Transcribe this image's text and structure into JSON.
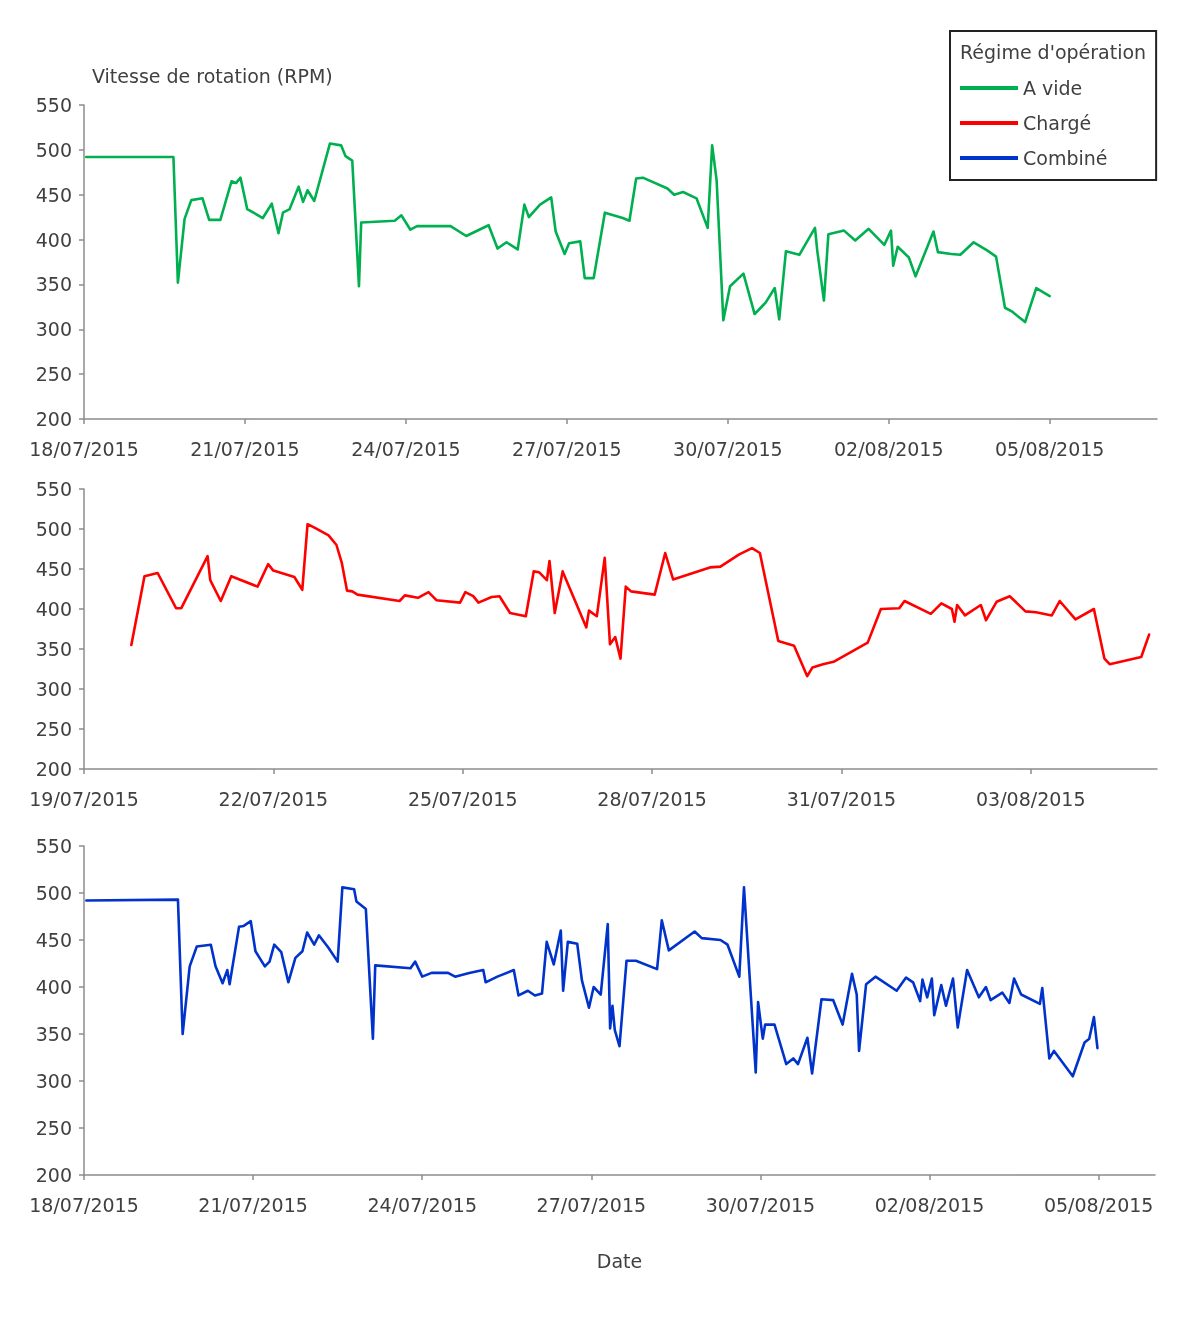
{
  "chart_data": [
    {
      "type": "line",
      "ylabel": "Vitesse de rotation (RPM)",
      "legend": "top right",
      "legend_title": "Régime d'opération",
      "xlim": [
        "2015-07-18",
        "2015-08-07"
      ],
      "xticks": [
        {
          "value": "2015-07-18",
          "label": "18/07/2015"
        },
        {
          "value": "2015-07-21",
          "label": "21/07/2015"
        },
        {
          "value": "2015-07-24",
          "label": "24/07/2015"
        },
        {
          "value": "2015-07-27",
          "label": "27/07/2015"
        },
        {
          "value": "2015-07-30",
          "label": "30/07/2015"
        },
        {
          "value": "2015-08-02",
          "label": "02/08/2015"
        },
        {
          "value": "2015-08-05",
          "label": "05/08/2015"
        }
      ],
      "ylim": [
        200,
        550
      ],
      "yticks": [
        200,
        250,
        300,
        350,
        400,
        450,
        500,
        550
      ],
      "series": [
        {
          "name": "A vide",
          "color": "#00b050",
          "x": [
            "2015-07-18T01:00",
            "2015-07-19T16:00",
            "2015-07-19T18:00",
            "2015-07-19T21:00",
            "2015-07-20T00:00",
            "2015-07-20T05:00",
            "2015-07-20T08:00",
            "2015-07-20T13:00",
            "2015-07-20T18:00",
            "2015-07-20T20:00",
            "2015-07-20T22:00",
            "2015-07-21T01:00",
            "2015-07-21T08:00",
            "2015-07-21T12:00",
            "2015-07-21T15:00",
            "2015-07-21T17:00",
            "2015-07-21T20:00",
            "2015-07-22T00:00",
            "2015-07-22T02:00",
            "2015-07-22T04:00",
            "2015-07-22T07:00",
            "2015-07-22T14:00",
            "2015-07-22T19:00",
            "2015-07-22T21:00",
            "2015-07-23T00:00",
            "2015-07-23T03:00",
            "2015-07-23T04:00",
            "2015-07-23T19:00",
            "2015-07-23T22:00",
            "2015-07-24T02:00",
            "2015-07-24T05:00",
            "2015-07-24T20:00",
            "2015-07-25T03:00",
            "2015-07-25T13:00",
            "2015-07-25T17:00",
            "2015-07-25T21:00",
            "2015-07-26T02:00",
            "2015-07-26T05:00",
            "2015-07-26T07:00",
            "2015-07-26T12:00",
            "2015-07-26T17:00",
            "2015-07-26T19:00",
            "2015-07-26T23:00",
            "2015-07-27T01:00",
            "2015-07-27T06:00",
            "2015-07-27T08:00",
            "2015-07-27T12:00",
            "2015-07-27T17:00",
            "2015-07-28T01:00",
            "2015-07-28T04:00",
            "2015-07-28T07:00",
            "2015-07-28T10:00",
            "2015-07-28T21:00",
            "2015-07-29T00:00",
            "2015-07-29T04:00",
            "2015-07-29T10:00",
            "2015-07-29T15:00",
            "2015-07-29T17:00",
            "2015-07-29T19:00",
            "2015-07-29T22:00",
            "2015-07-30T01:00",
            "2015-07-30T07:00",
            "2015-07-30T12:00",
            "2015-07-30T17:00",
            "2015-07-30T21:00",
            "2015-07-30T23:00",
            "2015-07-31T02:00",
            "2015-07-31T08:00",
            "2015-07-31T15:00",
            "2015-07-31T16:00",
            "2015-07-31T19:00",
            "2015-07-31T21:00",
            "2015-08-01T04:00",
            "2015-08-01T09:00",
            "2015-08-01T15:00",
            "2015-08-01T22:00",
            "2015-08-02T01:00",
            "2015-08-02T02:00",
            "2015-08-02T04:00",
            "2015-08-02T09:00",
            "2015-08-02T12:00",
            "2015-08-02T20:00",
            "2015-08-02T22:00",
            "2015-08-03T04:00",
            "2015-08-03T08:00",
            "2015-08-03T14:00",
            "2015-08-03T20:00",
            "2015-08-04T00:00",
            "2015-08-04T04:00",
            "2015-08-04T07:00",
            "2015-08-04T13:00",
            "2015-08-04T18:00",
            "2015-08-05T00:00"
          ],
          "values": [
            492,
            492,
            352,
            423,
            444,
            446,
            422,
            422,
            465,
            463,
            469,
            434,
            424,
            440,
            407,
            430,
            434,
            459,
            442,
            455,
            443,
            507,
            505,
            493,
            488,
            348,
            419,
            421,
            427,
            411,
            415,
            415,
            404,
            416,
            390,
            397,
            389,
            439,
            425,
            439,
            447,
            409,
            384,
            396,
            398,
            357,
            357,
            430,
            424,
            421,
            468,
            469,
            457,
            450,
            453,
            446,
            413,
            505,
            466,
            310,
            348,
            362,
            317,
            330,
            346,
            311,
            387,
            383,
            413,
            388,
            332,
            406,
            410,
            399,
            412,
            394,
            410,
            371,
            392,
            380,
            359,
            409,
            386,
            384,
            383,
            397,
            388,
            381,
            324,
            320,
            308,
            346,
            337
          ]
        }
      ]
    },
    {
      "type": "line",
      "xlim": [
        "2015-07-19",
        "2015-08-05"
      ],
      "xticks": [
        {
          "value": "2015-07-19",
          "label": "19/07/2015"
        },
        {
          "value": "2015-07-22",
          "label": "22/07/2015"
        },
        {
          "value": "2015-07-25",
          "label": "25/07/2015"
        },
        {
          "value": "2015-07-28",
          "label": "28/07/2015"
        },
        {
          "value": "2015-07-31",
          "label": "31/07/2015"
        },
        {
          "value": "2015-08-03",
          "label": "03/08/2015"
        }
      ],
      "ylim": [
        200,
        550
      ],
      "yticks": [
        200,
        250,
        300,
        350,
        400,
        450,
        500,
        550
      ],
      "series": [
        {
          "name": "Chargé",
          "color": "#ff0000",
          "x": [
            "2015-07-19T18:00",
            "2015-07-19T23:00",
            "2015-07-20T04:00",
            "2015-07-20T11:00",
            "2015-07-20T13:00",
            "2015-07-20T23:00",
            "2015-07-21T00:00",
            "2015-07-21T04:00",
            "2015-07-21T08:00",
            "2015-07-21T18:00",
            "2015-07-21T22:00",
            "2015-07-22T00:00",
            "2015-07-22T08:00",
            "2015-07-22T11:00",
            "2015-07-22T13:00",
            "2015-07-22T16:00",
            "2015-07-22T21:00",
            "2015-07-23T00:00",
            "2015-07-23T02:00",
            "2015-07-23T04:00",
            "2015-07-23T06:00",
            "2015-07-23T08:00",
            "2015-07-24T00:00",
            "2015-07-24T02:00",
            "2015-07-24T07:00",
            "2015-07-24T11:00",
            "2015-07-24T14:00",
            "2015-07-24T23:00",
            "2015-07-25T01:00",
            "2015-07-25T04:00",
            "2015-07-25T06:00",
            "2015-07-25T11:00",
            "2015-07-25T14:00",
            "2015-07-25T18:00",
            "2015-07-26T00:00",
            "2015-07-26T03:00",
            "2015-07-26T05:00",
            "2015-07-26T08:00",
            "2015-07-26T09:00",
            "2015-07-26T11:00",
            "2015-07-26T14:00",
            "2015-07-26T23:00",
            "2015-07-27T00:00",
            "2015-07-27T03:00",
            "2015-07-27T06:00",
            "2015-07-27T08:00",
            "2015-07-27T10:00",
            "2015-07-27T12:00",
            "2015-07-27T14:00",
            "2015-07-27T16:00",
            "2015-07-28T01:00",
            "2015-07-28T05:00",
            "2015-07-28T08:00",
            "2015-07-28T22:00",
            "2015-07-29T02:00",
            "2015-07-29T09:00",
            "2015-07-29T14:00",
            "2015-07-29T17:00",
            "2015-07-30T00:00",
            "2015-07-30T06:00",
            "2015-07-30T11:00",
            "2015-07-30T13:00",
            "2015-07-30T17:00",
            "2015-07-30T21:00",
            "2015-07-31T10:00",
            "2015-07-31T15:00",
            "2015-07-31T22:00",
            "2015-08-01T00:00",
            "2015-08-01T10:00",
            "2015-08-01T14:00",
            "2015-08-01T18:00",
            "2015-08-01T19:00",
            "2015-08-01T20:00",
            "2015-08-01T23:00",
            "2015-08-02T05:00",
            "2015-08-02T07:00",
            "2015-08-02T11:00",
            "2015-08-02T16:00",
            "2015-08-02T22:00",
            "2015-08-03T02:00",
            "2015-08-03T08:00",
            "2015-08-03T11:00",
            "2015-08-03T17:00",
            "2015-08-04T00:00",
            "2015-08-04T04:00",
            "2015-08-04T06:00",
            "2015-08-04T18:00",
            "2015-08-04T21:00"
          ],
          "values": [
            355,
            441,
            445,
            401,
            401,
            466,
            436,
            410,
            441,
            428,
            456,
            448,
            440,
            424,
            506,
            501,
            492,
            480,
            458,
            423,
            422,
            418,
            410,
            417,
            414,
            421,
            411,
            408,
            421,
            416,
            408,
            415,
            416,
            395,
            391,
            447,
            446,
            436,
            460,
            395,
            447,
            377,
            398,
            391,
            464,
            356,
            365,
            338,
            428,
            422,
            418,
            470,
            437,
            452,
            453,
            468,
            476,
            470,
            360,
            354,
            316,
            327,
            331,
            334,
            358,
            400,
            401,
            410,
            394,
            407,
            400,
            384,
            405,
            392,
            405,
            386,
            409,
            416,
            397,
            396,
            392,
            410,
            387,
            400,
            338,
            331,
            340,
            368
          ]
        }
      ]
    },
    {
      "type": "line",
      "xlabel": "Date",
      "xlim": [
        "2015-07-18",
        "2015-08-06"
      ],
      "xticks": [
        {
          "value": "2015-07-18",
          "label": "18/07/2015"
        },
        {
          "value": "2015-07-21",
          "label": "21/07/2015"
        },
        {
          "value": "2015-07-24",
          "label": "24/07/2015"
        },
        {
          "value": "2015-07-27",
          "label": "27/07/2015"
        },
        {
          "value": "2015-07-30",
          "label": "30/07/2015"
        },
        {
          "value": "2015-08-02",
          "label": "02/08/2015"
        },
        {
          "value": "2015-08-05",
          "label": "05/08/2015"
        }
      ],
      "ylim": [
        200,
        550
      ],
      "yticks": [
        200,
        250,
        300,
        350,
        400,
        450,
        500,
        550
      ],
      "series": [
        {
          "name": "Combiné",
          "color": "#0033cc",
          "x": [
            "2015-07-18T01:00",
            "2015-07-19T16:00",
            "2015-07-19T18:00",
            "2015-07-19T21:00",
            "2015-07-20T00:00",
            "2015-07-20T06:00",
            "2015-07-20T08:00",
            "2015-07-20T11:00",
            "2015-07-20T13:00",
            "2015-07-20T14:00",
            "2015-07-20T18:00",
            "2015-07-20T20:00",
            "2015-07-20T23:00",
            "2015-07-21T01:00",
            "2015-07-21T05:00",
            "2015-07-21T07:00",
            "2015-07-21T09:00",
            "2015-07-21T12:00",
            "2015-07-21T15:00",
            "2015-07-21T18:00",
            "2015-07-21T21:00",
            "2015-07-21T23:00",
            "2015-07-22T02:00",
            "2015-07-22T04:00",
            "2015-07-22T08:00",
            "2015-07-22T12:00",
            "2015-07-22T14:00",
            "2015-07-22T19:00",
            "2015-07-22T20:00",
            "2015-07-23T00:00",
            "2015-07-23T03:00",
            "2015-07-23T04:00",
            "2015-07-23T19:00",
            "2015-07-23T21:00",
            "2015-07-24T00:00",
            "2015-07-24T04:00",
            "2015-07-24T11:00",
            "2015-07-24T14:00",
            "2015-07-24T20:00",
            "2015-07-25T02:00",
            "2015-07-25T03:00",
            "2015-07-25T08:00",
            "2015-07-25T15:00",
            "2015-07-25T17:00",
            "2015-07-25T21:00",
            "2015-07-26T00:00",
            "2015-07-26T03:00",
            "2015-07-26T05:00",
            "2015-07-26T08:00",
            "2015-07-26T11:00",
            "2015-07-26T12:00",
            "2015-07-26T14:00",
            "2015-07-26T18:00",
            "2015-07-26T20:00",
            "2015-07-26T23:00",
            "2015-07-27T01:00",
            "2015-07-27T04:00",
            "2015-07-27T07:00",
            "2015-07-27T08:00",
            "2015-07-27T09:00",
            "2015-07-27T10:00",
            "2015-07-27T12:00",
            "2015-07-27T15:00",
            "2015-07-27T19:00",
            "2015-07-28T04:00",
            "2015-07-28T06:00",
            "2015-07-28T09:00",
            "2015-07-28T20:00",
            "2015-07-28T23:00",
            "2015-07-29T07:00",
            "2015-07-29T10:00",
            "2015-07-29T15:00",
            "2015-07-29T17:00",
            "2015-07-29T22:00",
            "2015-07-29T23:00",
            "2015-07-30T01:00",
            "2015-07-30T02:00",
            "2015-07-30T06:00",
            "2015-07-30T11:00",
            "2015-07-30T14:00",
            "2015-07-30T16:00",
            "2015-07-30T20:00",
            "2015-07-30T22:00",
            "2015-07-31T02:00",
            "2015-07-31T07:00",
            "2015-07-31T11:00",
            "2015-07-31T15:00",
            "2015-07-31T17:00",
            "2015-07-31T18:00",
            "2015-07-31T21:00",
            "2015-08-01T01:00",
            "2015-08-01T10:00",
            "2015-08-01T14:00",
            "2015-08-01T17:00",
            "2015-08-01T20:00",
            "2015-08-01T21:00",
            "2015-08-01T23:00",
            "2015-08-02T01:00",
            "2015-08-02T02:00",
            "2015-08-02T05:00",
            "2015-08-02T07:00",
            "2015-08-02T10:00",
            "2015-08-02T12:00",
            "2015-08-02T16:00",
            "2015-08-02T21:00",
            "2015-08-03T00:00",
            "2015-08-03T02:00",
            "2015-08-03T07:00",
            "2015-08-03T10:00",
            "2015-08-03T12:00",
            "2015-08-03T15:00",
            "2015-08-03T23:00",
            "2015-08-04T00:00",
            "2015-08-04T03:00",
            "2015-08-04T05:00",
            "2015-08-04T13:00",
            "2015-08-04T18:00",
            "2015-08-04T20:00",
            "2015-08-04T22:00",
            "2015-08-04T23:30"
          ],
          "values": [
            492,
            493,
            350,
            422,
            443,
            445,
            422,
            404,
            418,
            403,
            464,
            465,
            470,
            438,
            422,
            427,
            445,
            437,
            405,
            431,
            438,
            458,
            445,
            455,
            442,
            427,
            506,
            504,
            491,
            483,
            345,
            423,
            420,
            427,
            411,
            415,
            415,
            411,
            415,
            418,
            405,
            411,
            418,
            391,
            396,
            391,
            393,
            448,
            424,
            460,
            396,
            448,
            446,
            407,
            378,
            400,
            392,
            467,
            356,
            380,
            354,
            337,
            428,
            428,
            419,
            471,
            439,
            459,
            452,
            450,
            445,
            411,
            506,
            309,
            384,
            345,
            360,
            360,
            318,
            324,
            318,
            346,
            308,
            387,
            386,
            360,
            414,
            392,
            332,
            403,
            411,
            396,
            410,
            405,
            385,
            408,
            389,
            409,
            370,
            402,
            380,
            409,
            357,
            418,
            389,
            400,
            386,
            394,
            383,
            409,
            392,
            382,
            399,
            324,
            332,
            305,
            341,
            345,
            368,
            335
          ]
        }
      ]
    }
  ]
}
